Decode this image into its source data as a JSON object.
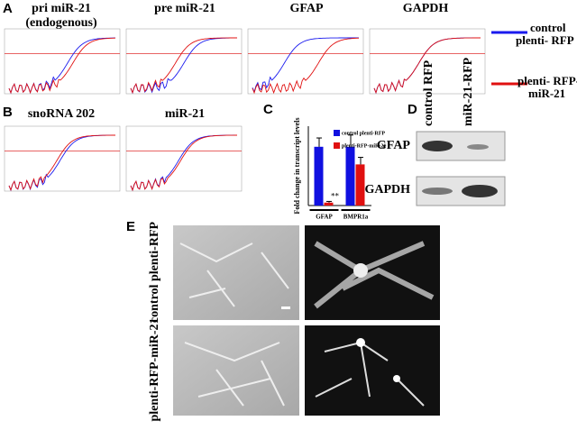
{
  "panels": {
    "A": {
      "label": "A",
      "plots": [
        {
          "title": "pri miR-21",
          "subtitle": "(endogenous)"
        },
        {
          "title": "pre miR-21"
        },
        {
          "title": "GFAP"
        },
        {
          "title": "GAPDH"
        }
      ]
    },
    "B": {
      "label": "B",
      "plots": [
        {
          "title": "snoRNA 202"
        },
        {
          "title": "miR-21"
        }
      ]
    },
    "C": {
      "label": "C"
    },
    "D": {
      "label": "D",
      "columns": [
        "control RFP",
        "miR-21-RFP"
      ],
      "rows": [
        "GFAP",
        "GAPDH"
      ]
    },
    "E": {
      "label": "E",
      "rows": [
        "control plenti-RFP",
        "plenti-RFP-miR-21"
      ]
    }
  },
  "legend": [
    {
      "lines": [
        "control",
        "plenti- RFP"
      ],
      "color": "#1a1aee"
    },
    {
      "lines": [
        "plenti- RFP-",
        "miR-21"
      ],
      "color": "#e01010"
    }
  ],
  "chart_data": {
    "type": "bar",
    "y_label": "Fold change in transcript levels",
    "categories": [
      "GFAP",
      "BMPR1a"
    ],
    "series": [
      {
        "name": "control plenti-RFP",
        "color": "#1010e0",
        "values": [
          1.0,
          1.0
        ],
        "errors": [
          0.15,
          0.2
        ]
      },
      {
        "name": "plenti-RFP-miR-21",
        "color": "#e01010",
        "values": [
          0.05,
          0.7
        ],
        "errors": [
          0.02,
          0.12
        ]
      }
    ],
    "annotation": "**",
    "ylim": [
      0,
      1.35
    ]
  }
}
